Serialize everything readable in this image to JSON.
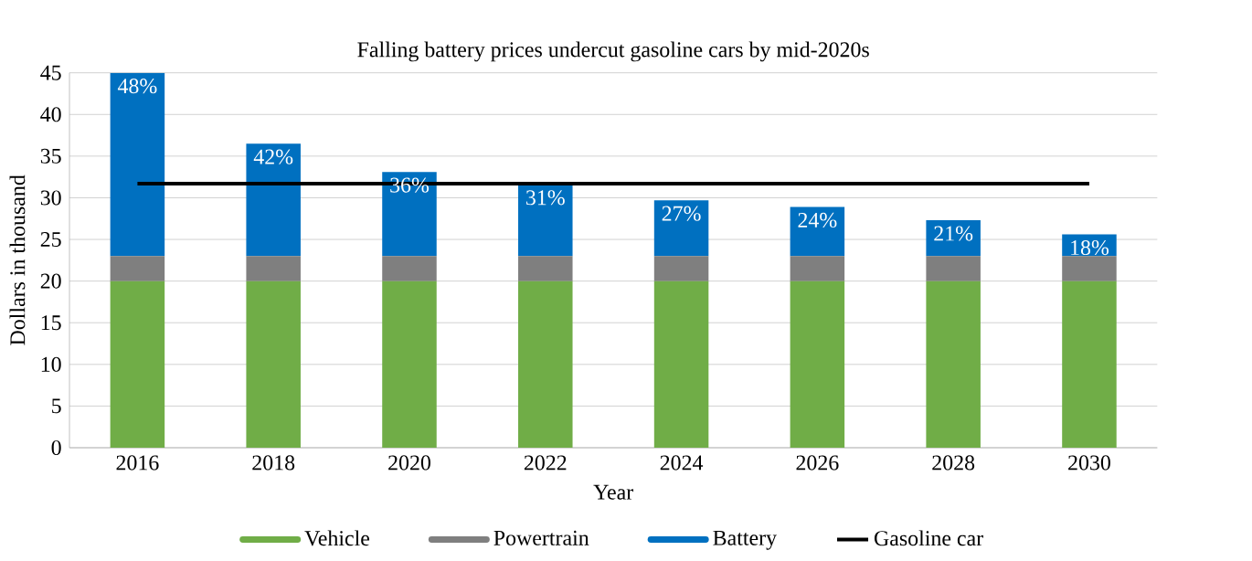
{
  "chart_data": {
    "type": "bar",
    "stacked": true,
    "title": "Falling battery prices undercut gasoline cars by mid-2020s",
    "xlabel": "Year",
    "ylabel": "Dollars in thousand",
    "categories": [
      "2016",
      "2018",
      "2020",
      "2022",
      "2024",
      "2026",
      "2028",
      "2030"
    ],
    "series": [
      {
        "name": "Vehicle",
        "color": "#70ad47",
        "values": [
          20,
          20,
          20,
          20,
          20,
          20,
          20,
          20
        ]
      },
      {
        "name": "Powertrain",
        "color": "#7f7f7f",
        "values": [
          3,
          3,
          3,
          3,
          3,
          3,
          3,
          3
        ]
      },
      {
        "name": "Battery",
        "color": "#0070c0",
        "values": [
          22,
          13.5,
          10.1,
          8.6,
          6.7,
          5.9,
          4.3,
          2.6
        ]
      },
      {
        "name": "Gasoline car",
        "type": "line",
        "color": "#000000",
        "values": [
          31.7,
          31.7,
          31.7,
          31.7,
          31.7,
          31.7,
          31.7,
          31.7
        ]
      }
    ],
    "annotations": [
      {
        "text": "48%",
        "x": "2016",
        "y": 45
      },
      {
        "text": "42%",
        "x": "2018",
        "y": 36.5
      },
      {
        "text": "36%",
        "x": "2020",
        "y": 33.1
      },
      {
        "text": "31%",
        "x": "2022",
        "y": 31.6
      },
      {
        "text": "27%",
        "x": "2024",
        "y": 29.7
      },
      {
        "text": "24%",
        "x": "2026",
        "y": 28.9
      },
      {
        "text": "21%",
        "x": "2028",
        "y": 27.3
      },
      {
        "text": "18%",
        "x": "2030",
        "y": 25.6
      }
    ],
    "ylim": [
      0,
      45
    ],
    "yticks": [
      0,
      5,
      10,
      15,
      20,
      25,
      30,
      35,
      40,
      45
    ],
    "grid": "y",
    "legend": "bottom"
  }
}
